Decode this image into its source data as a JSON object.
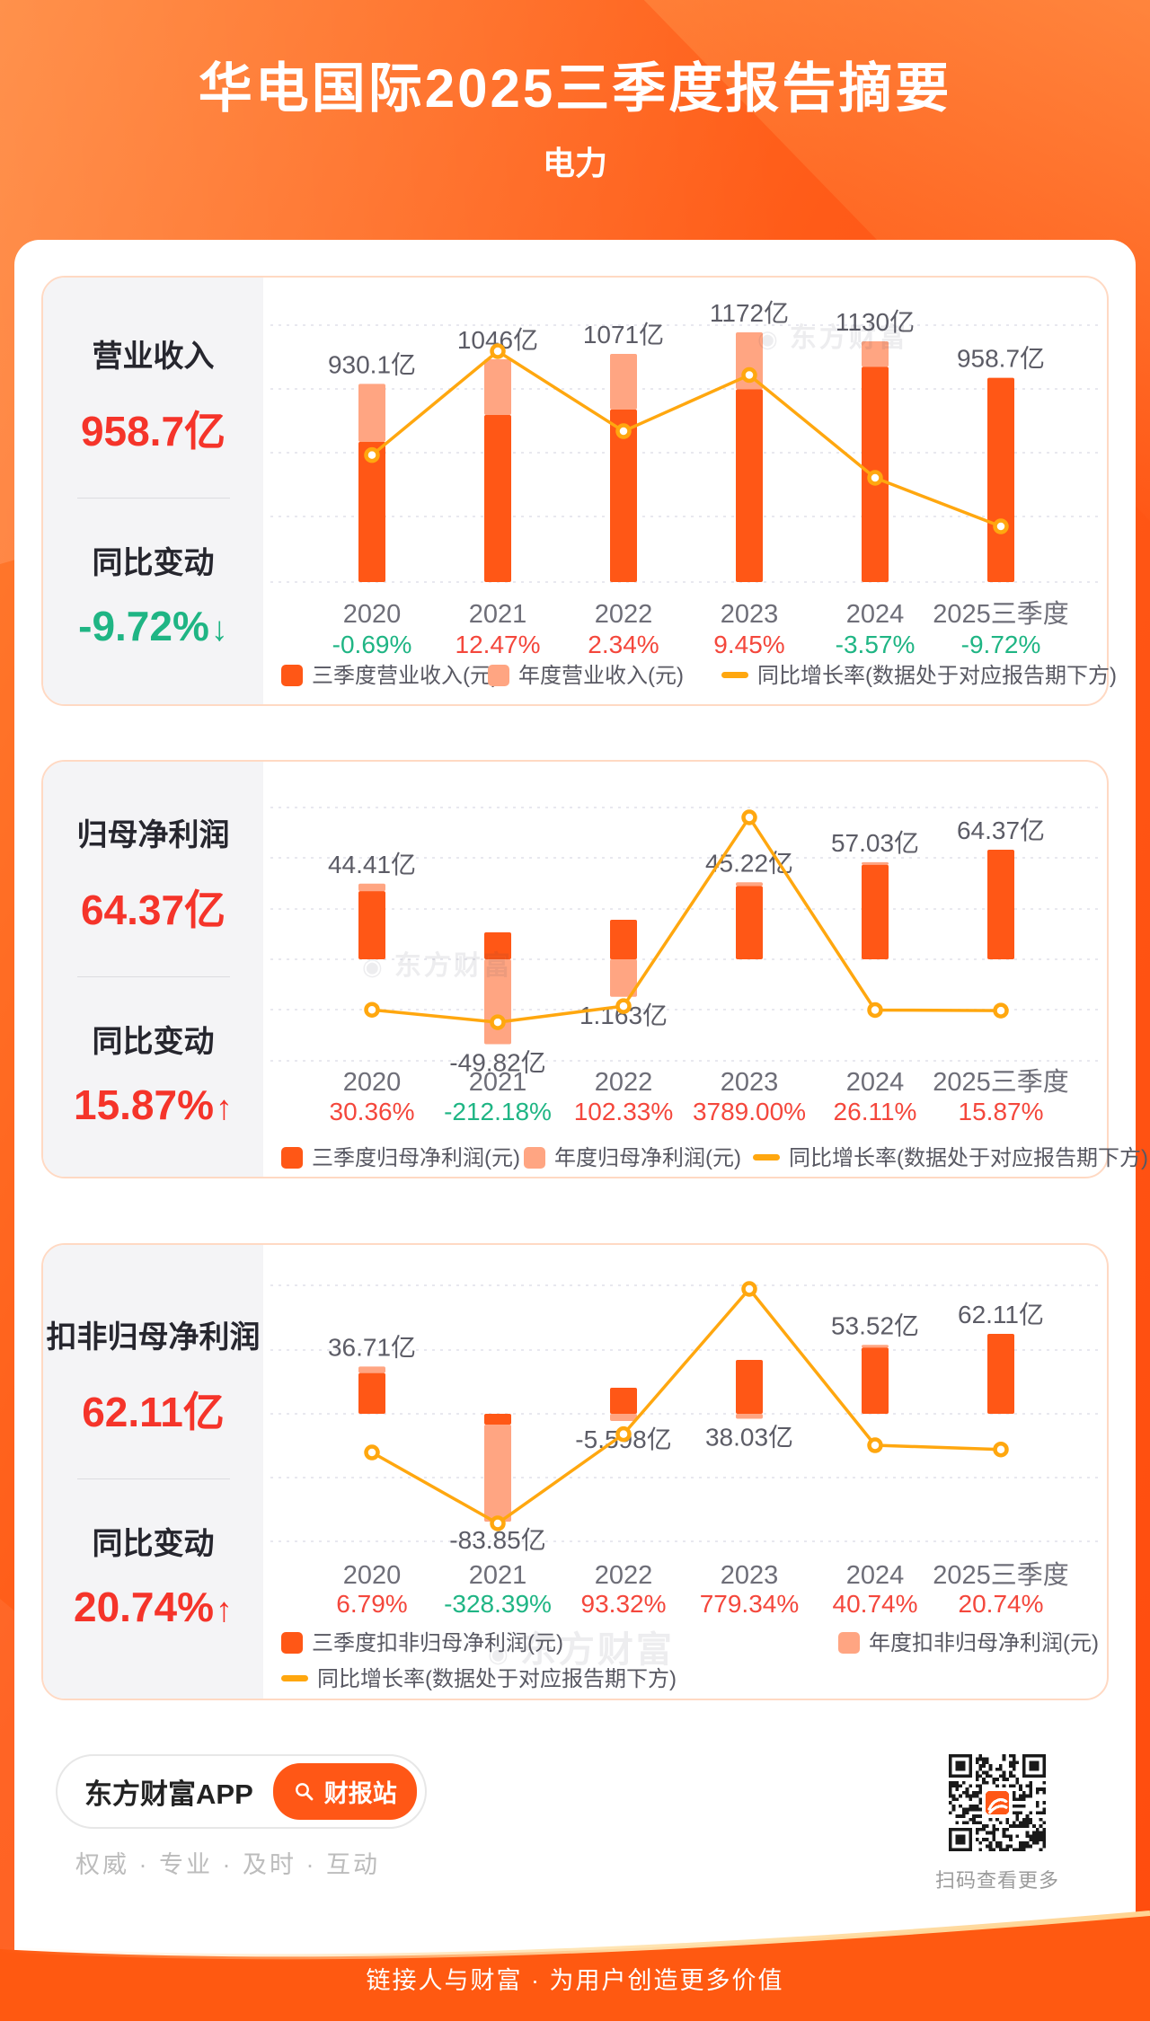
{
  "header": {
    "title": "华电国际2025三季度报告摘要",
    "subtitle": "电力"
  },
  "watermark": "东方财富",
  "panels": [
    {
      "metric_label": "营业收入",
      "metric_value": "958.7亿",
      "change_label": "同比变动",
      "change_value": "-9.72%",
      "change_arrow": "↓",
      "change_direction": "down",
      "legend": [
        {
          "swatch": "bar-dark",
          "label": "三季度营业收入(元)"
        },
        {
          "swatch": "bar-light",
          "label": "年度营业收入(元)"
        },
        {
          "swatch": "line",
          "label": "同比增长率(数据处于对应报告期下方)"
        }
      ]
    },
    {
      "metric_label": "归母净利润",
      "metric_value": "64.37亿",
      "change_label": "同比变动",
      "change_value": "15.87%",
      "change_arrow": "↑",
      "change_direction": "up",
      "legend": [
        {
          "swatch": "bar-dark",
          "label": "三季度归母净利润(元)"
        },
        {
          "swatch": "bar-light",
          "label": "年度归母净利润(元)"
        },
        {
          "swatch": "line",
          "label": "同比增长率(数据处于对应报告期下方)"
        }
      ]
    },
    {
      "metric_label": "扣非归母净利润",
      "metric_value": "62.11亿",
      "change_label": "同比变动",
      "change_value": "20.74%",
      "change_arrow": "↑",
      "change_direction": "up",
      "legend": [
        {
          "swatch": "bar-dark",
          "label": "三季度扣非归母净利润(元)"
        },
        {
          "swatch": "bar-light",
          "label": "年度扣非归母净利润(元)"
        },
        {
          "swatch": "line",
          "label": "同比增长率(数据处于对应报告期下方)"
        }
      ]
    }
  ],
  "chart_data": [
    {
      "type": "bar+line",
      "title": "营业收入",
      "unit": "亿元",
      "categories": [
        "2020",
        "2021",
        "2022",
        "2023",
        "2024",
        "2025三季度"
      ],
      "series": [
        {
          "name": "三季度营业收入(元)",
          "role": "q3-bar",
          "values": [
            658,
            784,
            810,
            905,
            1010,
            958.7
          ]
        },
        {
          "name": "年度营业收入(元)",
          "role": "annual-bar",
          "values": [
            930.1,
            1046,
            1071,
            1172,
            1130,
            null
          ]
        },
        {
          "name": "同比增长率(%)",
          "role": "growth-line",
          "values": [
            -0.69,
            12.47,
            2.34,
            9.45,
            -3.57,
            -9.72
          ]
        }
      ],
      "bar_labels": [
        {
          "text": "930.1亿",
          "pos": "above"
        },
        {
          "text": "1046亿",
          "pos": "above"
        },
        {
          "text": "1071亿",
          "pos": "above"
        },
        {
          "text": "1172亿",
          "pos": "above"
        },
        {
          "text": "1130亿",
          "pos": "above"
        },
        {
          "text": "958.7亿",
          "pos": "above"
        }
      ],
      "growth_labels": [
        "-0.69%",
        "12.47%",
        "2.34%",
        "9.45%",
        "-3.57%",
        "-9.72%"
      ],
      "legend_position": "bottom",
      "grid": "dashed-horizontal"
    },
    {
      "type": "bar+line",
      "title": "归母净利润",
      "unit": "亿元",
      "categories": [
        "2020",
        "2021",
        "2022",
        "2023",
        "2024",
        "2025三季度"
      ],
      "series": [
        {
          "name": "三季度归母净利润(元)",
          "role": "q3-bar",
          "values": [
            40.0,
            15.8,
            23.2,
            43.0,
            55.5,
            64.37
          ]
        },
        {
          "name": "年度归母净利润(元)",
          "role": "annual-bar",
          "values": [
            44.41,
            -49.82,
            1.163,
            45.22,
            57.03,
            null
          ]
        },
        {
          "name": "同比增长率(%)",
          "role": "growth-line",
          "values": [
            30.36,
            -212.18,
            102.33,
            3789.0,
            26.11,
            15.87
          ]
        }
      ],
      "bar_labels": [
        {
          "text": "44.41亿",
          "pos": "above"
        },
        {
          "text": "-49.82亿",
          "pos": "below"
        },
        {
          "text": "1.163亿",
          "pos": "below"
        },
        {
          "text": "45.22亿",
          "pos": "above"
        },
        {
          "text": "57.03亿",
          "pos": "above"
        },
        {
          "text": "64.37亿",
          "pos": "above"
        }
      ],
      "growth_labels": [
        "30.36%",
        "-212.18%",
        "102.33%",
        "3789.00%",
        "26.11%",
        "15.87%"
      ],
      "legend_position": "bottom",
      "grid": "dashed-horizontal"
    },
    {
      "type": "bar+line",
      "title": "扣非归母净利润",
      "unit": "亿元",
      "categories": [
        "2020",
        "2021",
        "2022",
        "2023",
        "2024",
        "2025三季度"
      ],
      "series": [
        {
          "name": "三季度扣非归母净利润(元)",
          "role": "q3-bar",
          "values": [
            31.7,
            -8.4,
            20.2,
            41.9,
            51.5,
            62.11
          ]
        },
        {
          "name": "年度扣非归母净利润(元)",
          "role": "annual-bar",
          "values": [
            36.71,
            -83.85,
            -5.598,
            38.03,
            53.52,
            null
          ]
        },
        {
          "name": "同比增长率(%)",
          "role": "growth-line",
          "values": [
            6.79,
            -328.39,
            93.32,
            779.34,
            40.74,
            20.74
          ]
        }
      ],
      "bar_labels": [
        {
          "text": "36.71亿",
          "pos": "above"
        },
        {
          "text": "-83.85亿",
          "pos": "below"
        },
        {
          "text": "-5.598亿",
          "pos": "below"
        },
        {
          "text": "38.03亿",
          "pos": "below"
        },
        {
          "text": "53.52亿",
          "pos": "above"
        },
        {
          "text": "62.11亿",
          "pos": "above"
        }
      ],
      "growth_labels": [
        "6.79%",
        "-328.39%",
        "93.32%",
        "779.34%",
        "40.74%",
        "20.74%"
      ],
      "legend_position": "bottom",
      "grid": "dashed-horizontal"
    }
  ],
  "footer": {
    "app_name": "东方财富APP",
    "station_button": "财报站",
    "tagline": "权威 · 专业 · 及时 · 互动",
    "qr_caption": "扫码查看更多"
  },
  "banner": {
    "text": "链接人与财富 · 为用户创造更多价值"
  },
  "colors": {
    "bar_dark": "#ff5716",
    "bar_light": "#ffa582",
    "line": "#ffa70f",
    "positive_red": "#f4473c",
    "negative_green": "#1fb584",
    "metric_red": "#f5342a",
    "background_orange": "#ff5b18",
    "banner_orange": "#ff5911"
  }
}
